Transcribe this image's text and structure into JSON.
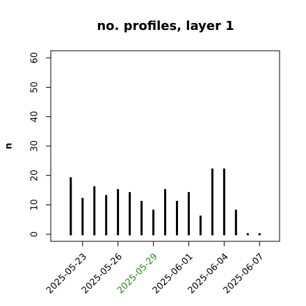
{
  "chart_data": {
    "type": "bar",
    "title": "no. profiles, layer 1",
    "y_label": "n",
    "x": [
      "2025-05-22",
      "2025-05-23",
      "2025-05-24",
      "2025-05-25",
      "2025-05-26",
      "2025-05-27",
      "2025-05-28",
      "2025-05-29",
      "2025-05-30",
      "2025-05-31",
      "2025-06-01",
      "2025-06-02",
      "2025-06-03",
      "2025-06-04",
      "2025-06-05",
      "2025-06-06",
      "2025-06-07"
    ],
    "values": [
      19,
      12,
      16,
      13,
      15,
      14,
      11,
      8,
      15,
      11,
      14,
      6,
      22,
      22,
      8,
      0,
      0
    ],
    "color": "#000000",
    "ylim": [
      -2.4,
      62.4
    ],
    "yticks": [
      0,
      10,
      20,
      30,
      40,
      50,
      60
    ],
    "xticks": [
      "2025-05-23",
      "2025-05-26",
      "2025-05-29",
      "2025-06-01",
      "2025-06-04",
      "2025-06-07"
    ],
    "xtick_colors": [
      "#000000",
      "#000000",
      "#228b22",
      "#000000",
      "#000000",
      "#000000"
    ]
  }
}
